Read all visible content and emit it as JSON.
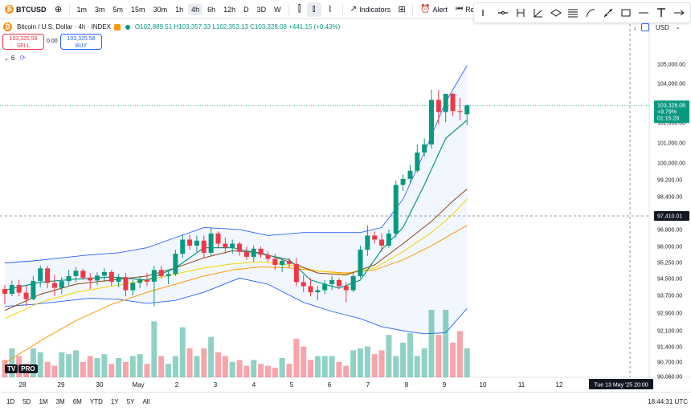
{
  "toolbar": {
    "symbol": "BTCUSD",
    "intervals": [
      "1m",
      "3m",
      "5m",
      "15m",
      "30m",
      "1h",
      "4h",
      "6h",
      "12h",
      "D",
      "3D",
      "W"
    ],
    "active_interval": "4h",
    "indicators_label": "Indicators",
    "alert_label": "Alert",
    "replay_label": "Repla"
  },
  "legend": {
    "title": "Bitcoin / U.S. Dollar · 4h · INDEX",
    "ohlc_text": "O102,889.51 H103,357.33 L102,353.13 C103,328.08 +441.15 (+0.43%)"
  },
  "trade": {
    "sell_price": "103,325.58",
    "sell_label": "SELL",
    "spread": "0.00",
    "buy_price": "103,325.58",
    "buy_label": "BUY"
  },
  "indicator_count": "6",
  "currency": "USD",
  "price_axis": {
    "ticks": [
      "105,000.00",
      "104,000.00",
      "102,000.00",
      "101,000.00",
      "100,000.00",
      "99,200.00",
      "98,400.00",
      "97,600.00",
      "96,800.00",
      "96,000.00",
      "95,250.00",
      "94,500.00",
      "93,700.00",
      "92,900.00",
      "92,100.00",
      "91,400.00",
      "90,700.00",
      "90,060.00"
    ],
    "current_price": "103,328.08",
    "current_change": "+9.79%",
    "countdown": "01:15:29",
    "crosshair_price": "97,410.01"
  },
  "time_axis": {
    "labels": [
      "28",
      "29",
      "30",
      "May",
      "2",
      "3",
      "4",
      "5",
      "6",
      "7",
      "8",
      "9",
      "10",
      "11",
      "12"
    ],
    "crosshair_label": "Tue 13 May '25   20:00"
  },
  "bottom": {
    "ranges": [
      "1D",
      "5D",
      "1M",
      "3M",
      "6M",
      "YTD",
      "1Y",
      "5Y",
      "All"
    ],
    "clock": "18:44:31 UTC"
  },
  "tv_logo_text": "PRO",
  "colors": {
    "up": "#089981",
    "down": "#f23645",
    "bb": "#2962ff",
    "ema_fast": "#089981",
    "ma_brown": "#8b4513",
    "ma_yellow": "#f2d600",
    "ma_orange": "#ff9800"
  },
  "chart_data": {
    "type": "candlestick",
    "symbol": "BTCUSD",
    "interval": "4h",
    "ylim": [
      89900,
      105600
    ],
    "candles": [
      [
        94260,
        94460,
        93500,
        94020
      ],
      [
        94020,
        94680,
        93900,
        94460
      ],
      [
        94460,
        94720,
        93900,
        94080
      ],
      [
        94080,
        94420,
        93400,
        93760
      ],
      [
        93760,
        94900,
        93700,
        94660
      ],
      [
        94660,
        95420,
        94360,
        95280
      ],
      [
        95280,
        95400,
        94300,
        94560
      ],
      [
        94560,
        94960,
        93900,
        94320
      ],
      [
        94320,
        94850,
        94000,
        94650
      ],
      [
        94650,
        95200,
        94400,
        94900
      ],
      [
        94900,
        95340,
        94600,
        95160
      ],
      [
        95160,
        95260,
        94700,
        94820
      ],
      [
        94820,
        95050,
        94250,
        94680
      ],
      [
        94680,
        95080,
        94450,
        94920
      ],
      [
        94920,
        95300,
        94600,
        95100
      ],
      [
        95100,
        95200,
        94400,
        94620
      ],
      [
        94620,
        95000,
        94360,
        94850
      ],
      [
        94850,
        95050,
        93900,
        94200
      ],
      [
        94200,
        94700,
        93950,
        94560
      ],
      [
        94560,
        94900,
        94300,
        94720
      ],
      [
        94720,
        95050,
        94400,
        94620
      ],
      [
        94620,
        95400,
        93400,
        95200
      ],
      [
        95200,
        95400,
        94780,
        94900
      ],
      [
        94900,
        95220,
        94500,
        95000
      ],
      [
        95000,
        96200,
        94900,
        96000
      ],
      [
        96000,
        96960,
        95800,
        96700
      ],
      [
        96700,
        96950,
        96200,
        96400
      ],
      [
        96400,
        96900,
        96100,
        96650
      ],
      [
        96650,
        96900,
        95800,
        96050
      ],
      [
        96050,
        97300,
        95900,
        97000
      ],
      [
        97000,
        97100,
        96300,
        96500
      ],
      [
        96500,
        96800,
        96000,
        96300
      ],
      [
        96300,
        96700,
        96000,
        96500
      ],
      [
        96500,
        96600,
        95900,
        96100
      ],
      [
        96100,
        96350,
        95700,
        95850
      ],
      [
        95850,
        96400,
        95600,
        96250
      ],
      [
        96250,
        96350,
        95800,
        95950
      ],
      [
        95950,
        96120,
        95600,
        95750
      ],
      [
        95750,
        96000,
        95200,
        95450
      ],
      [
        95450,
        95800,
        95100,
        95650
      ],
      [
        95650,
        95800,
        95300,
        95500
      ],
      [
        95500,
        95800,
        94400,
        94600
      ],
      [
        94600,
        94950,
        94100,
        94400
      ],
      [
        94400,
        94800,
        93900,
        94100
      ],
      [
        94100,
        94400,
        93700,
        94200
      ],
      [
        94200,
        94700,
        94000,
        94500
      ],
      [
        94500,
        94900,
        94200,
        94700
      ],
      [
        94700,
        94800,
        94250,
        94400
      ],
      [
        94400,
        94600,
        93600,
        94200
      ],
      [
        94200,
        95100,
        94100,
        94900
      ],
      [
        94900,
        96400,
        94800,
        96200
      ],
      [
        96200,
        97400,
        95900,
        96900
      ],
      [
        96900,
        97100,
        96500,
        96700
      ],
      [
        96700,
        97000,
        96100,
        96400
      ],
      [
        96400,
        97200,
        96300,
        97000
      ],
      [
        97000,
        99600,
        96800,
        99400
      ],
      [
        99400,
        99900,
        99100,
        99700
      ],
      [
        99700,
        100400,
        99500,
        100100
      ],
      [
        100100,
        101400,
        100000,
        101000
      ],
      [
        101000,
        101700,
        100800,
        101400
      ],
      [
        101400,
        104100,
        101200,
        103600
      ],
      [
        103600,
        104100,
        102400,
        103000
      ],
      [
        103000,
        103800,
        102500,
        103900
      ],
      [
        103900,
        103950,
        102800,
        103050
      ],
      [
        103050,
        103700,
        102600,
        103000
      ],
      [
        102889.51,
        103357.33,
        102353.13,
        103328.08
      ]
    ],
    "volume_ylim": [
      0,
      100
    ],
    "volume": [
      18,
      30,
      22,
      14,
      30,
      26,
      16,
      12,
      26,
      24,
      28,
      16,
      22,
      20,
      24,
      14,
      20,
      16,
      22,
      24,
      14,
      58,
      22,
      14,
      22,
      52,
      30,
      22,
      30,
      42,
      26,
      22,
      16,
      18,
      12,
      18,
      14,
      12,
      10,
      20,
      14,
      40,
      32,
      18,
      22,
      22,
      22,
      16,
      12,
      28,
      30,
      32,
      24,
      28,
      44,
      22,
      36,
      46,
      22,
      30,
      70,
      44,
      70,
      36,
      48,
      30
    ],
    "bollinger_upper": [
      [
        0,
        95550
      ],
      [
        4,
        95650
      ],
      [
        8,
        95800
      ],
      [
        12,
        95950
      ],
      [
        16,
        96050
      ],
      [
        20,
        96300
      ],
      [
        24,
        96800
      ],
      [
        28,
        97300
      ],
      [
        33,
        97200
      ],
      [
        37,
        96900
      ],
      [
        42,
        97050
      ],
      [
        46,
        97050
      ],
      [
        50,
        97050
      ],
      [
        53,
        97300
      ],
      [
        56,
        98700
      ],
      [
        59,
        101000
      ],
      [
        62,
        103500
      ],
      [
        65,
        105300
      ]
    ],
    "bollinger_lower": [
      [
        0,
        93400
      ],
      [
        4,
        93500
      ],
      [
        8,
        93650
      ],
      [
        12,
        93800
      ],
      [
        16,
        93750
      ],
      [
        20,
        93550
      ],
      [
        24,
        93700
      ],
      [
        28,
        94100
      ],
      [
        33,
        94800
      ],
      [
        37,
        94500
      ],
      [
        42,
        93600
      ],
      [
        46,
        93150
      ],
      [
        50,
        92800
      ],
      [
        53,
        92400
      ],
      [
        56,
        92200
      ],
      [
        59,
        92050
      ],
      [
        62,
        92100
      ],
      [
        65,
        93300
      ]
    ],
    "ema_fast": [
      [
        0,
        94200
      ],
      [
        5,
        94600
      ],
      [
        10,
        94750
      ],
      [
        15,
        94850
      ],
      [
        20,
        94700
      ],
      [
        24,
        95300
      ],
      [
        28,
        96300
      ],
      [
        32,
        96300
      ],
      [
        36,
        96000
      ],
      [
        40,
        95700
      ],
      [
        43,
        94700
      ],
      [
        47,
        94300
      ],
      [
        50,
        94700
      ],
      [
        53,
        96200
      ],
      [
        56,
        97300
      ],
      [
        59,
        99400
      ],
      [
        62,
        101700
      ],
      [
        65,
        102600
      ]
    ],
    "ma_brown": [
      [
        0,
        93200
      ],
      [
        5,
        94000
      ],
      [
        10,
        94500
      ],
      [
        15,
        94700
      ],
      [
        20,
        94900
      ],
      [
        24,
        95300
      ],
      [
        28,
        95800
      ],
      [
        32,
        96150
      ],
      [
        36,
        96050
      ],
      [
        40,
        95600
      ],
      [
        44,
        95050
      ],
      [
        48,
        94950
      ],
      [
        52,
        95450
      ],
      [
        56,
        96500
      ],
      [
        60,
        97600
      ],
      [
        63,
        98600
      ],
      [
        65,
        99200
      ]
    ],
    "ma_yellow": [
      [
        0,
        92800
      ],
      [
        5,
        93600
      ],
      [
        10,
        94100
      ],
      [
        15,
        94400
      ],
      [
        20,
        94700
      ],
      [
        24,
        95000
      ],
      [
        28,
        95300
      ],
      [
        32,
        95500
      ],
      [
        36,
        95600
      ],
      [
        40,
        95450
      ],
      [
        44,
        95150
      ],
      [
        48,
        95000
      ],
      [
        52,
        95300
      ],
      [
        56,
        96100
      ],
      [
        60,
        97050
      ],
      [
        63,
        97950
      ],
      [
        65,
        98700
      ]
    ],
    "ma_orange": [
      [
        0,
        90600
      ],
      [
        5,
        91700
      ],
      [
        10,
        92700
      ],
      [
        15,
        93500
      ],
      [
        20,
        94100
      ],
      [
        24,
        94500
      ],
      [
        28,
        94900
      ],
      [
        32,
        95200
      ],
      [
        36,
        95350
      ],
      [
        40,
        95300
      ],
      [
        44,
        95150
      ],
      [
        48,
        95050
      ],
      [
        52,
        95200
      ],
      [
        56,
        95700
      ],
      [
        60,
        96400
      ],
      [
        63,
        97000
      ],
      [
        65,
        97400
      ]
    ]
  }
}
